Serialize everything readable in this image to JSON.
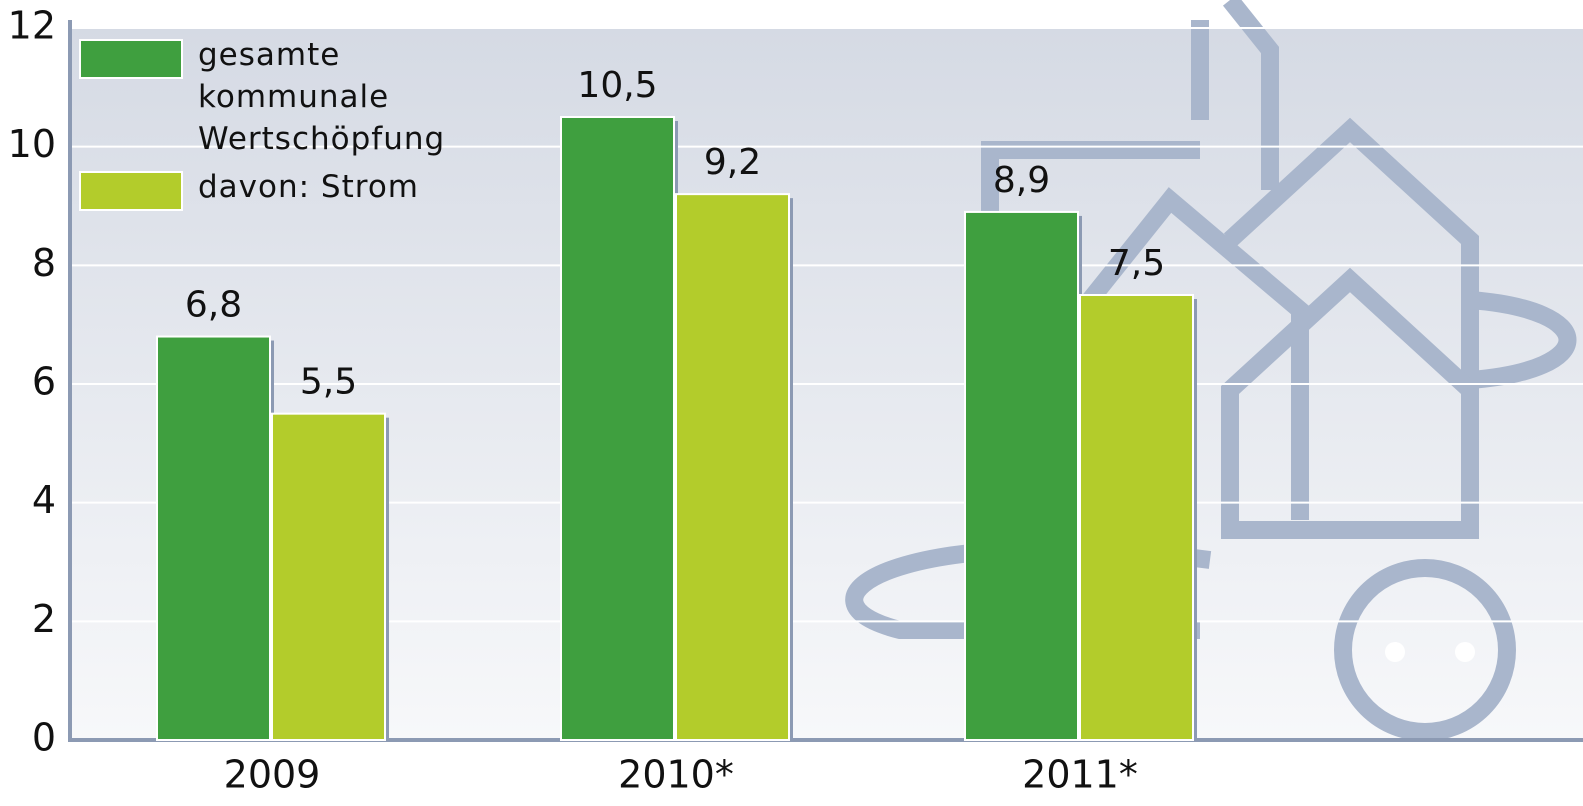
{
  "chart_data": {
    "type": "bar",
    "categories": [
      "2009",
      "2010*",
      "2011*"
    ],
    "series": [
      {
        "name": "gesamte kommunale Wertschöpfung",
        "color": "#3f9f3f",
        "values": [
          6.8,
          10.5,
          8.9
        ],
        "value_labels": [
          "6,8",
          "10,5",
          "8,9"
        ]
      },
      {
        "name": "davon: Strom",
        "color": "#b3cc2b",
        "values": [
          5.5,
          9.2,
          7.5
        ],
        "value_labels": [
          "5,5",
          "9,2",
          "7,5"
        ]
      }
    ],
    "ylim": [
      0,
      12
    ],
    "yticks": [
      0,
      2,
      4,
      6,
      8,
      10,
      12
    ],
    "grid": true
  }
}
